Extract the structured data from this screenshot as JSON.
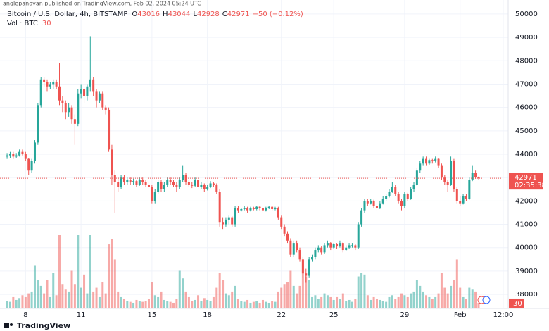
{
  "chart_data": {
    "type": "candlestick",
    "attribution": "anglepanoyan published on TradingView.com, Feb 02, 2024 05:24 UTC",
    "title": "Bitcoin / U.S. Dollar, 4h, BITSTAMP",
    "ohlc_labels": [
      "O",
      "H",
      "L",
      "C"
    ],
    "change": "−50 (−0.12%)",
    "volume_title": "Vol · BTC",
    "countdown": "02:35:38",
    "brand": "TradingView",
    "up_color": "#26a69a",
    "down_color": "#ef5350",
    "volume_up_color": "rgba(38,166,154,0.5)",
    "volume_down_color": "rgba(239,83,80,0.5)",
    "grid": true,
    "ylim": [
      37400,
      50600
    ],
    "yticks": [
      38000,
      39000,
      40000,
      41000,
      42000,
      43000,
      44000,
      45000,
      46000,
      47000,
      48000,
      49000,
      50000
    ],
    "vlim": [
      0,
      400
    ],
    "xlim": [
      -2.3,
      162.6
    ],
    "xticks": [
      {
        "value": 6,
        "label": "8"
      },
      {
        "value": 24,
        "label": "11"
      },
      {
        "value": 47,
        "label": "15"
      },
      {
        "value": 65,
        "label": "18"
      },
      {
        "value": 89,
        "label": "22"
      },
      {
        "value": 106,
        "label": "25"
      },
      {
        "value": 129,
        "label": "29"
      },
      {
        "value": 147,
        "label": "Feb"
      },
      {
        "value": 161,
        "label": "12:00"
      }
    ],
    "candles": [
      [
        43900,
        44050,
        43800,
        43950,
        40
      ],
      [
        43950,
        44100,
        43850,
        44000,
        35
      ],
      [
        44000,
        44100,
        43800,
        43900,
        60
      ],
      [
        43900,
        44050,
        43850,
        43950,
        45
      ],
      [
        43950,
        44200,
        43900,
        44100,
        55
      ],
      [
        44100,
        44200,
        43950,
        44000,
        70
      ],
      [
        44000,
        44100,
        43700,
        43800,
        60
      ],
      [
        43800,
        43850,
        43100,
        43300,
        80
      ],
      [
        43300,
        43800,
        43200,
        43700,
        90
      ],
      [
        43700,
        44600,
        43600,
        44500,
        230
      ],
      [
        44500,
        46200,
        44400,
        46100,
        150
      ],
      [
        46100,
        47300,
        46000,
        47200,
        120
      ],
      [
        47200,
        47300,
        46900,
        47100,
        80
      ],
      [
        47100,
        47200,
        46700,
        46900,
        150
      ],
      [
        46900,
        47100,
        46800,
        47000,
        60
      ],
      [
        47000,
        47200,
        46800,
        47100,
        190
      ],
      [
        47100,
        47200,
        46800,
        46900,
        70
      ],
      [
        46900,
        47900,
        46100,
        46300,
        390
      ],
      [
        46300,
        46500,
        45800,
        46200,
        130
      ],
      [
        46200,
        46300,
        45500,
        45800,
        100
      ],
      [
        45800,
        46200,
        45600,
        46000,
        90
      ],
      [
        46000,
        46100,
        45300,
        45500,
        200
      ],
      [
        45500,
        45700,
        44400,
        45300,
        130
      ],
      [
        45300,
        46800,
        45200,
        46600,
        390
      ],
      [
        46600,
        47000,
        46400,
        46800,
        110
      ],
      [
        46800,
        46900,
        46200,
        46500,
        180
      ],
      [
        46500,
        47000,
        46300,
        46900,
        80
      ],
      [
        46900,
        49050,
        46700,
        47200,
        390
      ],
      [
        47200,
        47300,
        46500,
        46700,
        90
      ],
      [
        46700,
        46800,
        46000,
        46300,
        110
      ],
      [
        46300,
        46700,
        46200,
        46600,
        60
      ],
      [
        46600,
        46700,
        45900,
        46000,
        140
      ],
      [
        46000,
        46100,
        45700,
        45900,
        80
      ],
      [
        45900,
        46000,
        44100,
        44200,
        340
      ],
      [
        44200,
        44400,
        42700,
        43100,
        370
      ],
      [
        43100,
        43300,
        41500,
        42800,
        260
      ],
      [
        42800,
        43000,
        42400,
        42600,
        90
      ],
      [
        42600,
        43100,
        42500,
        43000,
        60
      ],
      [
        43000,
        43100,
        42700,
        42800,
        50
      ],
      [
        42800,
        43000,
        42700,
        42900,
        40
      ],
      [
        42900,
        43000,
        42700,
        42800,
        35
      ],
      [
        42800,
        42950,
        42700,
        42850,
        30
      ],
      [
        42850,
        42900,
        42600,
        42700,
        45
      ],
      [
        42700,
        43000,
        42650,
        42900,
        40
      ],
      [
        42900,
        43000,
        42700,
        42800,
        35
      ],
      [
        42800,
        42900,
        42600,
        42700,
        40
      ],
      [
        42700,
        42800,
        42500,
        42600,
        50
      ],
      [
        42600,
        42700,
        41900,
        42000,
        140
      ],
      [
        42000,
        42500,
        41900,
        42400,
        70
      ],
      [
        42400,
        42900,
        42300,
        42800,
        60
      ],
      [
        42800,
        42900,
        42400,
        42500,
        90
      ],
      [
        42500,
        42800,
        42400,
        42700,
        45
      ],
      [
        42700,
        43000,
        42600,
        42900,
        40
      ],
      [
        42900,
        43000,
        42700,
        42800,
        35
      ],
      [
        42800,
        42900,
        42600,
        42700,
        30
      ],
      [
        42700,
        42800,
        42400,
        42600,
        50
      ],
      [
        42600,
        43000,
        42500,
        42900,
        200
      ],
      [
        42900,
        43500,
        42800,
        43100,
        160
      ],
      [
        43100,
        43200,
        42700,
        42800,
        90
      ],
      [
        42800,
        42900,
        42600,
        42700,
        60
      ],
      [
        42700,
        42800,
        42550,
        42650,
        40
      ],
      [
        42650,
        43000,
        42600,
        42900,
        45
      ],
      [
        42900,
        42950,
        42500,
        42600,
        70
      ],
      [
        42600,
        42800,
        42500,
        42700,
        40
      ],
      [
        42700,
        42750,
        42400,
        42500,
        55
      ],
      [
        42500,
        42700,
        42450,
        42600,
        45
      ],
      [
        42600,
        42850,
        42550,
        42750,
        40
      ],
      [
        42750,
        42800,
        42600,
        42700,
        60
      ],
      [
        42700,
        42750,
        42300,
        42400,
        110
      ],
      [
        42400,
        42500,
        40900,
        41100,
        190
      ],
      [
        41100,
        41300,
        40800,
        41000,
        150
      ],
      [
        41000,
        41300,
        40900,
        41200,
        80
      ],
      [
        41200,
        41400,
        41000,
        41300,
        70
      ],
      [
        41300,
        41350,
        40900,
        41000,
        90
      ],
      [
        41000,
        41800,
        40900,
        41700,
        120
      ],
      [
        41700,
        41800,
        41500,
        41600,
        50
      ],
      [
        41600,
        41700,
        41550,
        41650,
        40
      ],
      [
        41650,
        41800,
        41600,
        41700,
        35
      ],
      [
        41700,
        41750,
        41500,
        41600,
        45
      ],
      [
        41600,
        41750,
        41550,
        41700,
        30
      ],
      [
        41700,
        41750,
        41600,
        41650,
        35
      ],
      [
        41650,
        41800,
        41600,
        41750,
        40
      ],
      [
        41750,
        41800,
        41600,
        41700,
        30
      ],
      [
        41700,
        41750,
        41500,
        41600,
        45
      ],
      [
        41600,
        41750,
        41550,
        41700,
        35
      ],
      [
        41700,
        41800,
        41650,
        41750,
        30
      ],
      [
        41750,
        41800,
        41600,
        41650,
        40
      ],
      [
        41650,
        41750,
        41600,
        41700,
        35
      ],
      [
        41700,
        41750,
        41200,
        41300,
        90
      ],
      [
        41300,
        41400,
        40800,
        40900,
        110
      ],
      [
        40900,
        41000,
        40500,
        40600,
        130
      ],
      [
        40600,
        40700,
        40200,
        40300,
        140
      ],
      [
        40300,
        40400,
        39600,
        39700,
        200
      ],
      [
        39700,
        40300,
        39600,
        40200,
        120
      ],
      [
        40200,
        40300,
        39800,
        39900,
        80
      ],
      [
        39900,
        40000,
        39400,
        39500,
        120
      ],
      [
        39500,
        39600,
        38700,
        38900,
        260
      ],
      [
        38900,
        39100,
        38500,
        38800,
        170
      ],
      [
        38800,
        39600,
        38700,
        39500,
        150
      ],
      [
        39500,
        39700,
        39400,
        39600,
        60
      ],
      [
        39600,
        40000,
        39500,
        39900,
        70
      ],
      [
        39900,
        40100,
        39800,
        40000,
        50
      ],
      [
        40000,
        40050,
        39700,
        39800,
        60
      ],
      [
        39800,
        40200,
        39750,
        40100,
        80
      ],
      [
        40100,
        40300,
        40000,
        40200,
        70
      ],
      [
        40200,
        40250,
        39900,
        40000,
        60
      ],
      [
        40000,
        40200,
        39950,
        40150,
        45
      ],
      [
        40150,
        40200,
        39950,
        40050,
        60
      ],
      [
        40050,
        40300,
        40000,
        40200,
        50
      ],
      [
        40200,
        40250,
        39800,
        39900,
        80
      ],
      [
        39900,
        40100,
        39850,
        40000,
        40
      ],
      [
        40000,
        40200,
        39950,
        40100,
        45
      ],
      [
        40100,
        40200,
        40000,
        40100,
        35
      ],
      [
        40100,
        40150,
        39900,
        40000,
        50
      ],
      [
        40000,
        41100,
        39950,
        41000,
        170
      ],
      [
        41000,
        41700,
        40900,
        41600,
        190
      ],
      [
        41600,
        42100,
        41500,
        42000,
        180
      ],
      [
        42000,
        42100,
        41800,
        41900,
        70
      ],
      [
        41900,
        42100,
        41850,
        42000,
        45
      ],
      [
        42000,
        42050,
        41700,
        41800,
        60
      ],
      [
        41800,
        41900,
        41600,
        41700,
        50
      ],
      [
        41700,
        42000,
        41650,
        41900,
        45
      ],
      [
        41900,
        42200,
        41850,
        42100,
        40
      ],
      [
        42100,
        42300,
        42000,
        42200,
        35
      ],
      [
        42200,
        42500,
        42150,
        42400,
        60
      ],
      [
        42400,
        42800,
        42350,
        42600,
        70
      ],
      [
        42600,
        42700,
        42200,
        42300,
        50
      ],
      [
        42300,
        42400,
        41900,
        42000,
        60
      ],
      [
        42000,
        42100,
        41600,
        41800,
        80
      ],
      [
        41800,
        42400,
        41700,
        42300,
        70
      ],
      [
        42300,
        42350,
        42000,
        42100,
        60
      ],
      [
        42100,
        42600,
        42050,
        42500,
        80
      ],
      [
        42500,
        42800,
        42400,
        42700,
        90
      ],
      [
        42700,
        43400,
        42650,
        43300,
        150
      ],
      [
        43300,
        43700,
        43200,
        43600,
        120
      ],
      [
        43600,
        43900,
        43500,
        43800,
        90
      ],
      [
        43800,
        43900,
        43500,
        43600,
        70
      ],
      [
        43600,
        43800,
        43550,
        43750,
        60
      ],
      [
        43750,
        43800,
        43600,
        43700,
        50
      ],
      [
        43700,
        43900,
        43650,
        43800,
        60
      ],
      [
        43800,
        43850,
        43400,
        43500,
        80
      ],
      [
        43500,
        43600,
        42900,
        43000,
        190
      ],
      [
        43000,
        43100,
        42700,
        42800,
        110
      ],
      [
        42800,
        42900,
        42400,
        42700,
        80
      ],
      [
        42700,
        43900,
        42650,
        43700,
        120
      ],
      [
        43700,
        43800,
        42400,
        42500,
        150
      ],
      [
        42500,
        42600,
        41900,
        42000,
        260
      ],
      [
        42000,
        42200,
        41800,
        41900,
        110
      ],
      [
        41900,
        42300,
        41850,
        42200,
        60
      ],
      [
        42200,
        42300,
        42000,
        42100,
        50
      ],
      [
        42100,
        43000,
        42050,
        42900,
        110
      ],
      [
        42900,
        43500,
        42850,
        43200,
        100
      ],
      [
        43200,
        43300,
        42950,
        43021,
        90
      ],
      [
        43016,
        43044,
        42928,
        42971,
        30
      ]
    ]
  }
}
